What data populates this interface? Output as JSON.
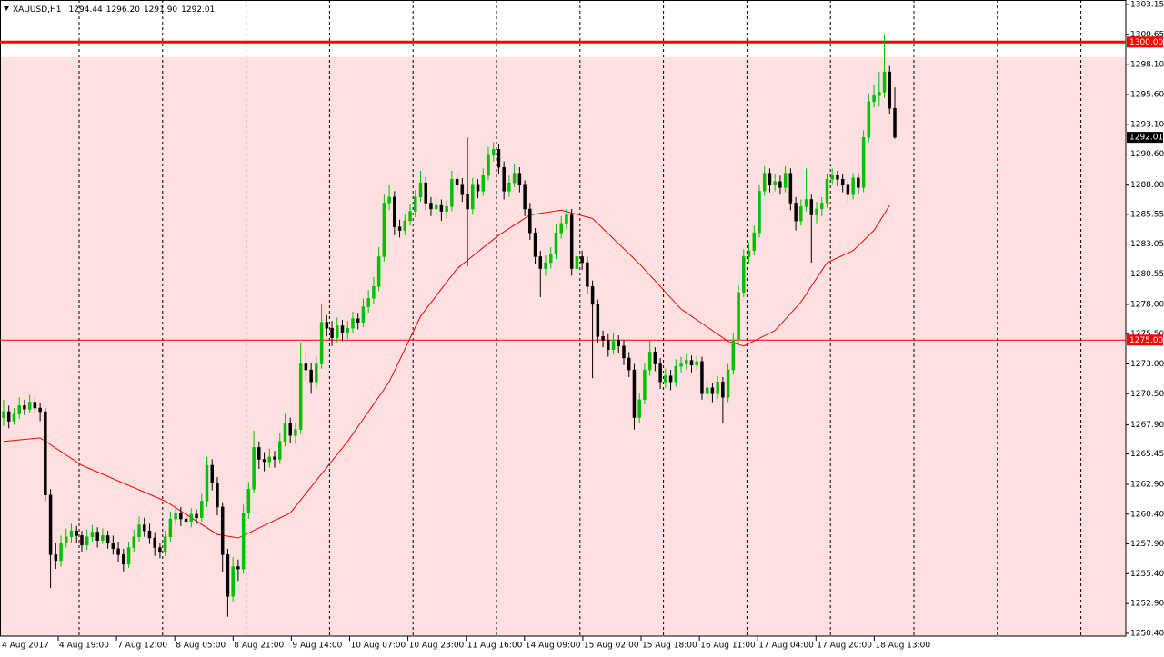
{
  "chart_data": {
    "type": "candlestick",
    "header": {
      "symbol": "XAUUSD,H1",
      "ohlc_labels": [
        "1294.44",
        "1296.20",
        "1291.90",
        "1292.01"
      ]
    },
    "ylim": [
      1250.17,
      1303.53
    ],
    "yticks": [
      {
        "value": 1303.15,
        "label": "1303.15"
      },
      1300.65,
      {
        "value": 1298.1,
        "label": "1298.10"
      },
      {
        "value": 1295.6,
        "label": "1295.60"
      },
      {
        "value": 1293.1,
        "label": "1293.10"
      },
      {
        "value": 1290.6,
        "label": "1290.60"
      },
      {
        "value": 1288,
        "label": "1288.00"
      },
      1285.55,
      1283.05,
      1280.55,
      {
        "value": 1278,
        "label": "1278.00"
      },
      {
        "value": 1275.5,
        "label": "1275.50"
      },
      {
        "value": 1273,
        "label": "1273.00"
      },
      {
        "value": 1270.5,
        "label": "1270.50"
      },
      {
        "value": 1267.9,
        "label": "1267.90"
      },
      1265.45,
      {
        "value": 1262.9,
        "label": "1262.90"
      },
      {
        "value": 1260.4,
        "label": "1260.40"
      },
      {
        "value": 1257.9,
        "label": "1257.90"
      },
      {
        "value": 1255.4,
        "label": "1255.40"
      },
      {
        "value": 1252.9,
        "label": "1252.90"
      },
      {
        "value": 1250.4,
        "label": "1250.40"
      }
    ],
    "time_labels": [
      "4 Aug 2017",
      "4 Aug 19:00",
      "7 Aug 12:00",
      "8 Aug 05:00",
      "8 Aug 21:00",
      "9 Aug 14:00",
      "10 Aug 07:00",
      "10 Aug 23:00",
      "11 Aug 16:00",
      "14 Aug 09:00",
      "15 Aug 02:00",
      "15 Aug 18:00",
      "16 Aug 11:00",
      "17 Aug 04:00",
      "17 Aug 20:00",
      "18 Aug 13:00"
    ],
    "zone": {
      "top": 1298.75,
      "color": "#ffe0e0"
    },
    "levels": [
      {
        "value": 1300,
        "label": "1300.00",
        "width": 3
      },
      {
        "value": 1275,
        "label": "1275.00",
        "width": 1
      }
    ],
    "level_color": "#ff0000",
    "bid": {
      "value": 1292.01,
      "label": "1292.01"
    },
    "up_color": "#00c000",
    "down_color": "#000000",
    "moving_average": {
      "color": "#ff0000",
      "x": [
        0,
        7,
        15,
        31,
        41,
        45,
        55,
        66,
        74,
        80,
        87,
        95,
        101,
        107,
        113,
        122,
        130,
        139,
        142,
        148,
        153,
        158,
        163,
        167,
        170
      ],
      "values": [
        1266.5,
        1266.8,
        1264.5,
        1261.5,
        1258.7,
        1258.4,
        1260.5,
        1266.5,
        1271.5,
        1277,
        1281,
        1283.8,
        1285.5,
        1285.9,
        1285.2,
        1281.4,
        1277.6,
        1274.9,
        1274.5,
        1275.8,
        1278.2,
        1281.5,
        1282.5,
        1284.2,
        1286.3
      ]
    },
    "candles": [
      [
        1268.5,
        1270,
        1267.8,
        1269
      ],
      [
        1269,
        1269.5,
        1267.6,
        1268.2
      ],
      [
        1268.2,
        1269.3,
        1267.9,
        1268.8
      ],
      [
        1268.8,
        1270.2,
        1268.4,
        1269.5
      ],
      [
        1269.5,
        1270,
        1268.7,
        1269.2
      ],
      [
        1269.2,
        1270.4,
        1268.9,
        1269.8
      ],
      [
        1269.8,
        1270.2,
        1268.8,
        1269.3
      ],
      [
        1269.3,
        1269.7,
        1268.2,
        1269
      ],
      [
        1269,
        1269.3,
        1261.5,
        1262
      ],
      [
        1262,
        1262.5,
        1254.2,
        1257
      ],
      [
        1257,
        1258,
        1255.8,
        1256.5
      ],
      [
        1256.5,
        1258.6,
        1256,
        1258
      ],
      [
        1258,
        1259.2,
        1257.6,
        1258.5
      ],
      [
        1258.5,
        1259.6,
        1258,
        1259
      ],
      [
        1259,
        1259.4,
        1258,
        1258.6
      ],
      [
        1258.6,
        1259,
        1257.2,
        1257.8
      ],
      [
        1257.8,
        1259.1,
        1257.4,
        1258.5
      ],
      [
        1258.5,
        1259.5,
        1258.1,
        1258.9
      ],
      [
        1258.9,
        1259.3,
        1257.6,
        1258.2
      ],
      [
        1258.2,
        1259.2,
        1257.9,
        1258.6
      ],
      [
        1258.6,
        1259,
        1257.5,
        1258
      ],
      [
        1258,
        1258.6,
        1257,
        1257.5
      ],
      [
        1257.5,
        1258.1,
        1256.4,
        1257
      ],
      [
        1257,
        1257.5,
        1255.6,
        1256.2
      ],
      [
        1256.2,
        1258.1,
        1255.9,
        1257.6
      ],
      [
        1257.6,
        1259.1,
        1257.2,
        1258.5
      ],
      [
        1258.5,
        1260.2,
        1258.1,
        1259.5
      ],
      [
        1259.5,
        1260.1,
        1258.5,
        1259
      ],
      [
        1259,
        1259.6,
        1257.9,
        1258.4
      ],
      [
        1258.4,
        1258.9,
        1256.9,
        1257.6
      ],
      [
        1257.6,
        1258,
        1256.7,
        1257.2
      ],
      [
        1257.2,
        1259,
        1256.9,
        1258.5
      ],
      [
        1258.5,
        1260.6,
        1258.1,
        1260
      ],
      [
        1260,
        1261.2,
        1259.5,
        1260.5
      ],
      [
        1260.5,
        1261,
        1259.4,
        1260
      ],
      [
        1260,
        1260.6,
        1259.1,
        1259.8
      ],
      [
        1259.8,
        1260.9,
        1259.3,
        1260.4
      ],
      [
        1260.4,
        1260.8,
        1259.6,
        1260.1
      ],
      [
        1260.1,
        1262.1,
        1259.8,
        1261.5
      ],
      [
        1261.5,
        1265.2,
        1261,
        1264.5
      ],
      [
        1264.5,
        1265,
        1262.4,
        1263
      ],
      [
        1263,
        1263.5,
        1260.3,
        1261
      ],
      [
        1261,
        1261.4,
        1255.5,
        1257
      ],
      [
        1257,
        1257.5,
        1251.8,
        1253.5
      ],
      [
        1253.5,
        1256.8,
        1253,
        1256
      ],
      [
        1256,
        1256.6,
        1254.8,
        1255.8
      ],
      [
        1255.8,
        1261.2,
        1255.4,
        1260.5
      ],
      [
        1260.5,
        1263.1,
        1260,
        1262.5
      ],
      [
        1262.5,
        1267.4,
        1262.2,
        1266
      ],
      [
        1266,
        1266.5,
        1264.2,
        1265
      ],
      [
        1265,
        1265.6,
        1264,
        1264.8
      ],
      [
        1264.8,
        1265.9,
        1264.3,
        1265.2
      ],
      [
        1265.2,
        1265.7,
        1264.3,
        1265
      ],
      [
        1265,
        1267.2,
        1264.6,
        1266.5
      ],
      [
        1266.5,
        1268.8,
        1266.1,
        1268
      ],
      [
        1268,
        1268.5,
        1266.4,
        1267
      ],
      [
        1267,
        1268.1,
        1266.3,
        1267.5
      ],
      [
        1267.5,
        1274.8,
        1267.1,
        1273
      ],
      [
        1273,
        1274,
        1271.6,
        1272.5
      ],
      [
        1272.5,
        1273.1,
        1270.5,
        1271.5
      ],
      [
        1271.5,
        1273.6,
        1271,
        1273
      ],
      [
        1273,
        1278,
        1272.6,
        1276.5
      ],
      [
        1276.5,
        1277.1,
        1275.3,
        1276
      ],
      [
        1276,
        1276.6,
        1274.5,
        1275.2
      ],
      [
        1275.2,
        1276.9,
        1274.8,
        1276.2
      ],
      [
        1276.2,
        1276.7,
        1274.9,
        1275.6
      ],
      [
        1275.6,
        1276.6,
        1275.1,
        1276
      ],
      [
        1276,
        1277.4,
        1275.6,
        1276.8
      ],
      [
        1276.8,
        1277.3,
        1275.9,
        1276.5
      ],
      [
        1276.5,
        1278.5,
        1276.1,
        1277.8
      ],
      [
        1277.8,
        1279.2,
        1277.3,
        1278.5
      ],
      [
        1278.5,
        1280.3,
        1278,
        1279.5
      ],
      [
        1279.5,
        1282.8,
        1279.1,
        1282
      ],
      [
        1282,
        1287.2,
        1281.6,
        1286.5
      ],
      [
        1286.5,
        1288,
        1285.9,
        1287
      ],
      [
        1287,
        1287.5,
        1283.8,
        1284.5
      ],
      [
        1284.5,
        1285.1,
        1283.6,
        1284.2
      ],
      [
        1284.2,
        1285.6,
        1283.8,
        1285
      ],
      [
        1285,
        1286.4,
        1284.6,
        1285.8
      ],
      [
        1285.8,
        1287.6,
        1285.3,
        1287
      ],
      [
        1287,
        1289.2,
        1286.6,
        1288.2
      ],
      [
        1288.2,
        1288.7,
        1285.9,
        1286.5
      ],
      [
        1286.5,
        1287,
        1285.4,
        1286
      ],
      [
        1286,
        1286.9,
        1285.5,
        1286.3
      ],
      [
        1286.3,
        1286.8,
        1285,
        1285.8
      ],
      [
        1285.8,
        1286.7,
        1285.2,
        1286.2
      ],
      [
        1286.2,
        1289.2,
        1285.8,
        1288.5
      ],
      [
        1288.5,
        1289,
        1287.4,
        1288
      ],
      [
        1288,
        1288.6,
        1286.6,
        1287.2
      ],
      [
        1287.2,
        1292,
        1281.2,
        1286
      ],
      [
        1286,
        1288.6,
        1285.5,
        1288
      ],
      [
        1288,
        1288.5,
        1286.9,
        1287.5
      ],
      [
        1287.5,
        1289.4,
        1287.1,
        1288.8
      ],
      [
        1288.8,
        1291.2,
        1288.4,
        1290.5
      ],
      [
        1290.5,
        1291.6,
        1290,
        1291
      ],
      [
        1291,
        1291.4,
        1288.9,
        1289.5
      ],
      [
        1289.5,
        1290,
        1286.8,
        1287.5
      ],
      [
        1287.5,
        1288.8,
        1287,
        1288.2
      ],
      [
        1288.2,
        1289.8,
        1287.8,
        1289
      ],
      [
        1289,
        1289.5,
        1287.4,
        1288
      ],
      [
        1288,
        1288.4,
        1285.4,
        1286
      ],
      [
        1286,
        1286.5,
        1283.4,
        1284
      ],
      [
        1284,
        1284.4,
        1281.4,
        1282
      ],
      [
        1282,
        1282.5,
        1278.6,
        1281
      ],
      [
        1281,
        1282.1,
        1280.4,
        1281.5
      ],
      [
        1281.5,
        1282.8,
        1281,
        1282.2
      ],
      [
        1282.2,
        1284.7,
        1281.8,
        1284
      ],
      [
        1284,
        1285.4,
        1283.5,
        1284.8
      ],
      [
        1284.8,
        1286,
        1284.3,
        1285.5
      ],
      [
        1285.5,
        1286,
        1280.4,
        1281
      ],
      [
        1281,
        1282.6,
        1280.5,
        1282
      ],
      [
        1282,
        1282.5,
        1280.9,
        1281.5
      ],
      [
        1281.5,
        1282,
        1278.9,
        1279.5
      ],
      [
        1279.5,
        1280,
        1271.8,
        1278
      ],
      [
        1278,
        1278.4,
        1274.8,
        1275.3
      ],
      [
        1275.3,
        1275.8,
        1274.4,
        1275
      ],
      [
        1275,
        1275.5,
        1273.6,
        1274.2
      ],
      [
        1274.2,
        1275.6,
        1273.8,
        1275
      ],
      [
        1275,
        1275.4,
        1273.9,
        1274.5
      ],
      [
        1274.5,
        1275,
        1272.9,
        1273.5
      ],
      [
        1273.5,
        1274,
        1271.9,
        1272.5
      ],
      [
        1272.5,
        1273,
        1267.5,
        1268.5
      ],
      [
        1268.5,
        1270.6,
        1268,
        1270
      ],
      [
        1270,
        1273.1,
        1269.6,
        1272.5
      ],
      [
        1272.5,
        1275,
        1272,
        1274
      ],
      [
        1274,
        1274.4,
        1272.4,
        1273
      ],
      [
        1273,
        1273.5,
        1270.9,
        1271.5
      ],
      [
        1271.5,
        1272.6,
        1271,
        1272
      ],
      [
        1272,
        1272.5,
        1270.8,
        1271.5
      ],
      [
        1271.5,
        1273.4,
        1271.1,
        1272.8
      ],
      [
        1272.8,
        1273.6,
        1272.3,
        1273
      ],
      [
        1273,
        1273.8,
        1272.5,
        1273.3
      ],
      [
        1273.3,
        1273.7,
        1272.3,
        1272.9
      ],
      [
        1272.9,
        1273.7,
        1272.5,
        1273.2
      ],
      [
        1273.2,
        1273.6,
        1270,
        1270.5
      ],
      [
        1270.5,
        1271.6,
        1270.1,
        1271
      ],
      [
        1271,
        1271.4,
        1269.8,
        1270.5
      ],
      [
        1270.5,
        1272,
        1270.1,
        1271.5
      ],
      [
        1271.5,
        1271.9,
        1268,
        1270.2
      ],
      [
        1270.2,
        1273,
        1269.8,
        1272.5
      ],
      [
        1272.5,
        1275.6,
        1272.1,
        1275
      ],
      [
        1275,
        1279.6,
        1274.6,
        1279
      ],
      [
        1279,
        1282.6,
        1278.6,
        1282
      ],
      [
        1282,
        1283.2,
        1281.4,
        1282.5
      ],
      [
        1282.5,
        1284.6,
        1282.1,
        1284
      ],
      [
        1284,
        1288,
        1283.6,
        1287.5
      ],
      [
        1287.5,
        1289.6,
        1287.1,
        1289
      ],
      [
        1289,
        1289.4,
        1287.4,
        1288
      ],
      [
        1288,
        1288.9,
        1287.5,
        1288.3
      ],
      [
        1288.3,
        1288.8,
        1287.2,
        1287.8
      ],
      [
        1287.8,
        1289.6,
        1287.4,
        1289
      ],
      [
        1289,
        1289.4,
        1285.9,
        1286.5
      ],
      [
        1286.5,
        1287,
        1284.2,
        1285
      ],
      [
        1285,
        1286.8,
        1284.6,
        1286.2
      ],
      [
        1286.2,
        1289.4,
        1285.8,
        1286.8
      ],
      [
        1286.8,
        1287.2,
        1281.5,
        1285.5
      ],
      [
        1285.5,
        1286.6,
        1284.8,
        1286
      ],
      [
        1286,
        1287,
        1285.4,
        1286.5
      ],
      [
        1286.5,
        1289,
        1286.1,
        1288.5
      ],
      [
        1288.5,
        1289.4,
        1288,
        1288.8
      ],
      [
        1288.8,
        1289.2,
        1287.9,
        1288.5
      ],
      [
        1288.5,
        1288.9,
        1287.4,
        1288
      ],
      [
        1288,
        1288.4,
        1286.6,
        1287.2
      ],
      [
        1287.2,
        1289,
        1286.8,
        1288.6
      ],
      [
        1288.6,
        1289,
        1287.2,
        1287.8
      ],
      [
        1287.8,
        1292.6,
        1287.4,
        1292
      ],
      [
        1292,
        1295.7,
        1291.6,
        1295
      ],
      [
        1295,
        1296.4,
        1294.5,
        1295.5
      ],
      [
        1295.5,
        1297.5,
        1294.6,
        1295.8
      ],
      [
        1295.8,
        1300.6,
        1295.3,
        1297.5
      ],
      [
        1297.5,
        1298,
        1294,
        1294.44
      ],
      [
        1294.44,
        1296.2,
        1291.9,
        1292.01
      ]
    ]
  }
}
